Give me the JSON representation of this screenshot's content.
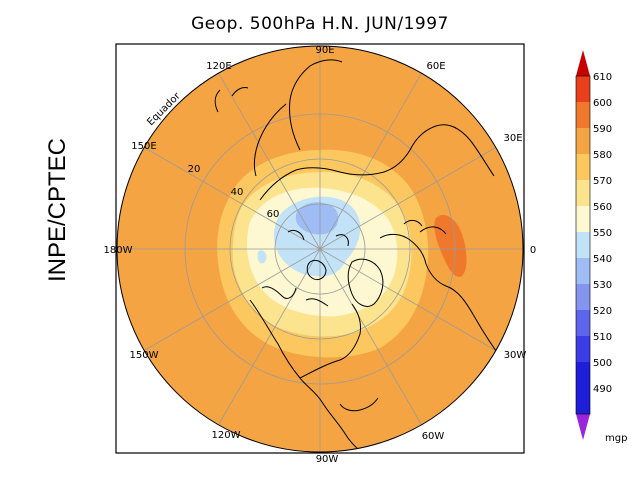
{
  "title": "Geop. 500hPa H.N. JUN/1997",
  "side_label": "INPE/CPTEC",
  "map": {
    "equator_label": "Equador",
    "longitude_labels": [
      "90E",
      "60E",
      "30E",
      "0",
      "30W",
      "60W",
      "90W",
      "120W",
      "150W",
      "180W",
      "150E",
      "120E"
    ],
    "latitude_labels": [
      "20",
      "40",
      "60"
    ]
  },
  "colorbar": {
    "unit": "mgp",
    "levels": [
      "610",
      "600",
      "590",
      "580",
      "570",
      "560",
      "550",
      "540",
      "530",
      "520",
      "510",
      "500",
      "490"
    ],
    "colors": {
      "above_610": "#c80000",
      "600_610": "#e8401c",
      "590_600": "#f0782c",
      "580_590": "#f4a442",
      "570_580": "#fbc75e",
      "560_570": "#fce48f",
      "550_560": "#fdf7d2",
      "540_550": "#c2e2f7",
      "530_540": "#a0bcf4",
      "520_530": "#8494ef",
      "510_520": "#5e64ec",
      "500_510": "#3b3ce6",
      "490_500": "#1e1ed8",
      "below_490": "#9b24dd"
    }
  }
}
